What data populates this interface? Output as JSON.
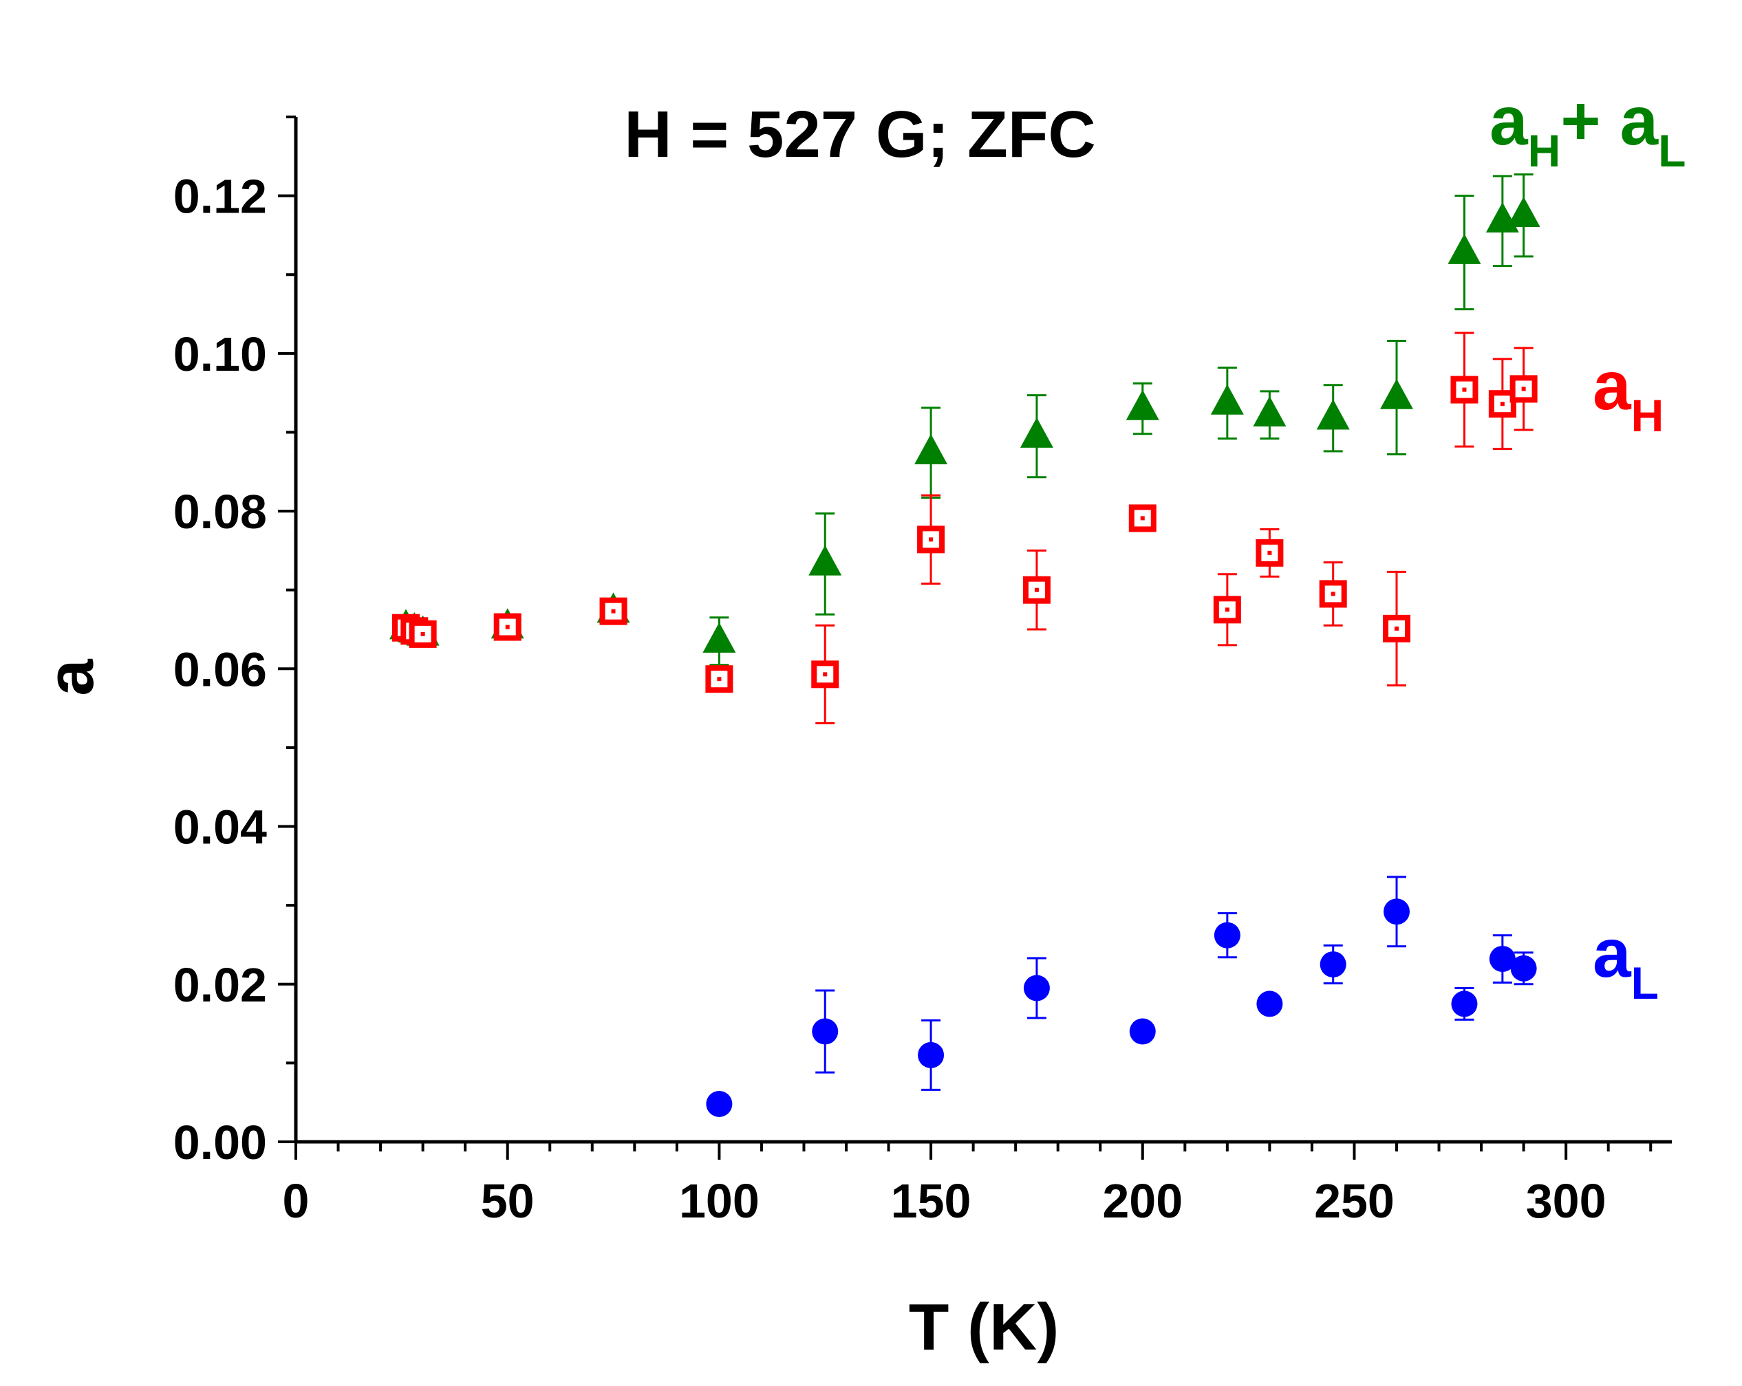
{
  "chart_data": {
    "type": "scatter",
    "title": "H = 527 G;  ZFC",
    "xlabel": "T (K)",
    "ylabel": "a",
    "xlim": [
      0,
      325
    ],
    "ylim": [
      0,
      0.13
    ],
    "xticks": [
      0,
      50,
      100,
      150,
      200,
      250,
      300
    ],
    "xtick_labels": [
      "0",
      "50",
      "100",
      "150",
      "200",
      "250",
      "300"
    ],
    "yticks": [
      0,
      0.02,
      0.04,
      0.06,
      0.08,
      0.1,
      0.12
    ],
    "ytick_labels": [
      "0.00",
      "0.02",
      "0.04",
      "0.06",
      "0.08",
      "0.10",
      "0.12"
    ],
    "series": [
      {
        "name": "aH",
        "label_main": "a",
        "label_sub": "H",
        "color": "#ff0000",
        "marker": "open-square",
        "x": [
          26,
          28,
          30,
          50,
          75,
          100,
          125,
          150,
          175,
          200,
          220,
          230,
          245,
          260,
          276,
          285,
          290
        ],
        "y": [
          0.0652,
          0.0648,
          0.0644,
          0.0653,
          0.0673,
          0.0587,
          0.0593,
          0.0764,
          0.07,
          0.0791,
          0.0675,
          0.0747,
          0.0695,
          0.0651,
          0.0954,
          0.0936,
          0.0955
        ],
        "y_err": [
          0,
          0,
          0,
          0,
          0,
          0.0015,
          0.0062,
          0.0056,
          0.005,
          0.0016,
          0.0045,
          0.003,
          0.004,
          0.0072,
          0.0072,
          0.0057,
          0.0052
        ]
      },
      {
        "name": "aL",
        "label_main": "a",
        "label_sub": "L",
        "color": "#0000ff",
        "marker": "filled-circle",
        "x": [
          100,
          125,
          150,
          175,
          200,
          220,
          230,
          245,
          260,
          276,
          285,
          290
        ],
        "y": [
          0.0048,
          0.014,
          0.011,
          0.0195,
          0.014,
          0.0262,
          0.0175,
          0.0225,
          0.0292,
          0.0175,
          0.0232,
          0.022
        ],
        "y_err": [
          0,
          0.0052,
          0.0044,
          0.0038,
          0,
          0.0028,
          0,
          0.0024,
          0.0044,
          0.002,
          0.003,
          0.002
        ]
      },
      {
        "name": "aH + aL",
        "label_main": "a",
        "label_sub": "H",
        "label_plus": "+",
        "label_main2": "a",
        "label_sub2": "L",
        "color": "#008000",
        "marker": "filled-triangle",
        "x": [
          26,
          28,
          30,
          50,
          75,
          100,
          125,
          150,
          175,
          200,
          220,
          230,
          245,
          260,
          276,
          285,
          290
        ],
        "y": [
          0.0652,
          0.0648,
          0.0644,
          0.0653,
          0.0673,
          0.0635,
          0.0733,
          0.0874,
          0.0895,
          0.093,
          0.0937,
          0.0922,
          0.0918,
          0.0944,
          0.1128,
          0.1168,
          0.1175
        ],
        "y_err": [
          0,
          0,
          0,
          0,
          0,
          0.003,
          0.0064,
          0.0057,
          0.0052,
          0.0032,
          0.0045,
          0.003,
          0.0042,
          0.0072,
          0.0072,
          0.0057,
          0.0052
        ]
      }
    ]
  }
}
